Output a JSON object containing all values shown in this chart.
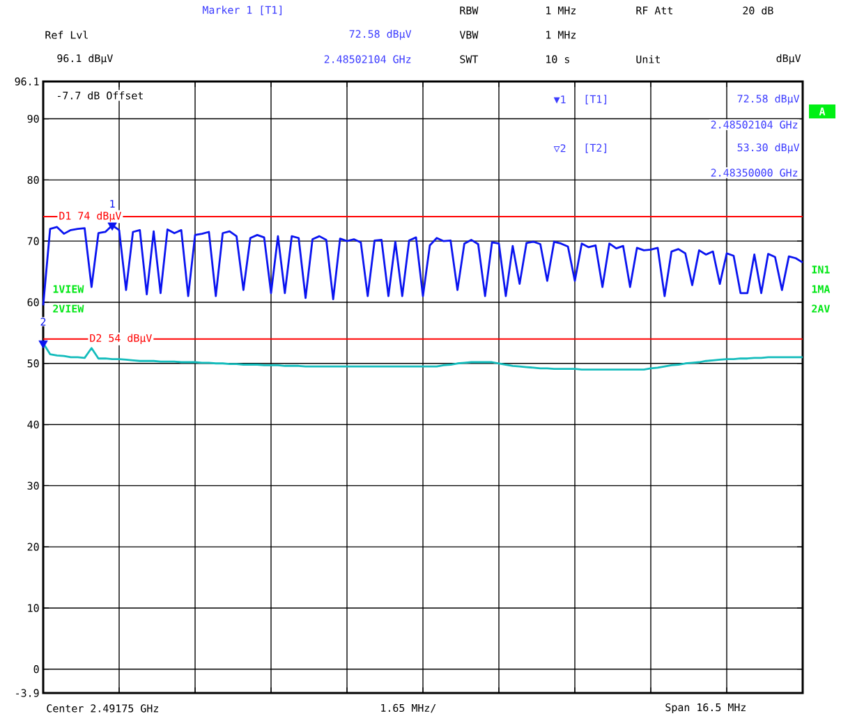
{
  "chart_data": {
    "type": "line",
    "ylim": [
      -3.9,
      96.1
    ],
    "categories": [
      null,
      null,
      null,
      null,
      null,
      null,
      null,
      null,
      null,
      null,
      null,
      null,
      null,
      null,
      null,
      null,
      null,
      null,
      null,
      null,
      null,
      null,
      null,
      null,
      null,
      null,
      null,
      null,
      null,
      null,
      null,
      null,
      null,
      null,
      null,
      null,
      null,
      null,
      null,
      null,
      null,
      null,
      null,
      null,
      null,
      null,
      null,
      null,
      null,
      null,
      null,
      null,
      null,
      null,
      null,
      null,
      null,
      null,
      null,
      null,
      null,
      null,
      null,
      null,
      null,
      null,
      null,
      null,
      null,
      null,
      null,
      null,
      null,
      null,
      null,
      null,
      null,
      null,
      null,
      null,
      null,
      null,
      null,
      null,
      null,
      null,
      null,
      null,
      null,
      null,
      null,
      null,
      null,
      null,
      null,
      null,
      null,
      null,
      null,
      null,
      null,
      null,
      null,
      null,
      null,
      null,
      null,
      null,
      null,
      null,
      null
    ],
    "yticks": [
      -3.9,
      0,
      10,
      20,
      30,
      40,
      50,
      60,
      70,
      80,
      90,
      96.1
    ],
    "tick_labels": "y",
    "grid": true,
    "series": [
      {
        "color": "#0a14f0",
        "values": [
          59.5,
          72,
          72.3,
          71.2,
          71.8,
          72,
          72.1,
          62.5,
          71.3,
          71.5,
          72.58,
          71.8,
          62,
          71.5,
          71.8,
          61.3,
          71.6,
          61.5,
          71.9,
          71.3,
          71.8,
          61,
          71,
          71.2,
          71.5,
          61,
          71.3,
          71.6,
          70.8,
          62,
          70.5,
          71,
          70.6,
          61.5,
          70.8,
          61.5,
          70.8,
          70.5,
          60.7,
          70.3,
          70.8,
          70.2,
          60.5,
          70.4,
          70,
          70.3,
          69.8,
          61,
          70.1,
          70.2,
          61,
          69.9,
          61,
          70.1,
          70.6,
          61,
          69.3,
          70.5,
          70,
          70.1,
          62,
          69.6,
          70.2,
          69.5,
          61,
          69.8,
          69.6,
          61,
          69.2,
          63,
          69.7,
          69.9,
          69.5,
          63.5,
          69.9,
          69.6,
          69.1,
          63.5,
          69.6,
          69,
          69.3,
          62.5,
          69.6,
          68.8,
          69.2,
          62.5,
          68.9,
          68.5,
          68.6,
          68.9,
          61,
          68.3,
          68.7,
          68,
          62.8,
          68.5,
          67.8,
          68.3,
          63,
          68,
          67.6,
          61.5,
          61.5,
          67.8,
          61.5,
          67.9,
          67.4,
          62,
          67.5,
          67.2,
          66.5
        ]
      },
      {
        "color": "#14bcbc",
        "values": [
          53.3,
          51.5,
          51.3,
          51.2,
          51,
          51,
          50.9,
          52.5,
          50.8,
          50.8,
          50.7,
          50.7,
          50.6,
          50.5,
          50.4,
          50.4,
          50.4,
          50.3,
          50.3,
          50.3,
          50.2,
          50.2,
          50.2,
          50.1,
          50.1,
          50,
          50,
          49.9,
          49.9,
          49.8,
          49.8,
          49.8,
          49.7,
          49.7,
          49.7,
          49.6,
          49.6,
          49.6,
          49.5,
          49.5,
          49.5,
          49.5,
          49.5,
          49.5,
          49.5,
          49.5,
          49.5,
          49.5,
          49.5,
          49.5,
          49.5,
          49.5,
          49.5,
          49.5,
          49.5,
          49.5,
          49.5,
          49.5,
          49.7,
          49.8,
          50,
          50.1,
          50.2,
          50.2,
          50.2,
          50.2,
          50,
          49.8,
          49.6,
          49.5,
          49.4,
          49.3,
          49.2,
          49.2,
          49.1,
          49.1,
          49.1,
          49.1,
          49,
          49,
          49,
          49,
          49,
          49,
          49,
          49,
          49,
          49,
          49.2,
          49.3,
          49.5,
          49.7,
          49.8,
          50,
          50.1,
          50.2,
          50.4,
          50.5,
          50.6,
          50.7,
          50.7,
          50.8,
          50.8,
          50.9,
          50.9,
          51,
          51,
          51,
          51,
          51,
          51
        ]
      },
      {
        "type": "scatter",
        "marker": "triangle",
        "color": "#0a14f0",
        "values": [
          53.3,
          null,
          null,
          null,
          null,
          null,
          null,
          null,
          null,
          null,
          72.58,
          null,
          null,
          null,
          null,
          null,
          null,
          null,
          null,
          null,
          null,
          null,
          null,
          null,
          null,
          null,
          null,
          null,
          null,
          null,
          null,
          null,
          null,
          null,
          null,
          null,
          null,
          null,
          null,
          null,
          null,
          null,
          null,
          null,
          null,
          null,
          null,
          null,
          null,
          null,
          null,
          null,
          null,
          null,
          null,
          null,
          null,
          null,
          null,
          null,
          null,
          null,
          null,
          null,
          null,
          null,
          null,
          null,
          null,
          null,
          null,
          null,
          null,
          null,
          null,
          null,
          null,
          null,
          null,
          null,
          null,
          null,
          null,
          null,
          null,
          null,
          null,
          null,
          null,
          null,
          null,
          null,
          null,
          null,
          null,
          null,
          null,
          null,
          null,
          null,
          null,
          null,
          null,
          null,
          null,
          null,
          null,
          null,
          null,
          null,
          null
        ]
      }
    ],
    "ref_lines": [
      {
        "axis": "y",
        "value": 74,
        "label": "D1 74 dBµV",
        "color": "#ff0000"
      },
      {
        "axis": "y",
        "value": 54,
        "label": "D2 54 dBµV",
        "color": "#ff0000"
      }
    ],
    "annotations": [
      "Marker 1 [T1]",
      "RBW",
      "1 MHz",
      "RF Att",
      "20 dB",
      "Ref Lvl",
      "72.58 dBµV",
      "VBW",
      "1 MHz",
      "96.1 dBµV",
      "2.48502104 GHz",
      "SWT",
      "10 s",
      "Unit",
      "dBµV",
      "-7.7 dB Offset",
      "▼1",
      "[T1]",
      "72.58 dBµV",
      "2.48502104 GHz",
      "▽2",
      "[T2]",
      "53.30 dBµV",
      "2.48350000 GHz",
      "A",
      "IN1",
      "1MA",
      "2AV",
      "1VIEW",
      "2VIEW",
      "Center 2.49175 GHz",
      "1.65 MHz/",
      "Span 16.5 MHz",
      {
        "text": "1",
        "y": 72.58
      },
      {
        "text": "2",
        "y": 53.3
      }
    ]
  }
}
